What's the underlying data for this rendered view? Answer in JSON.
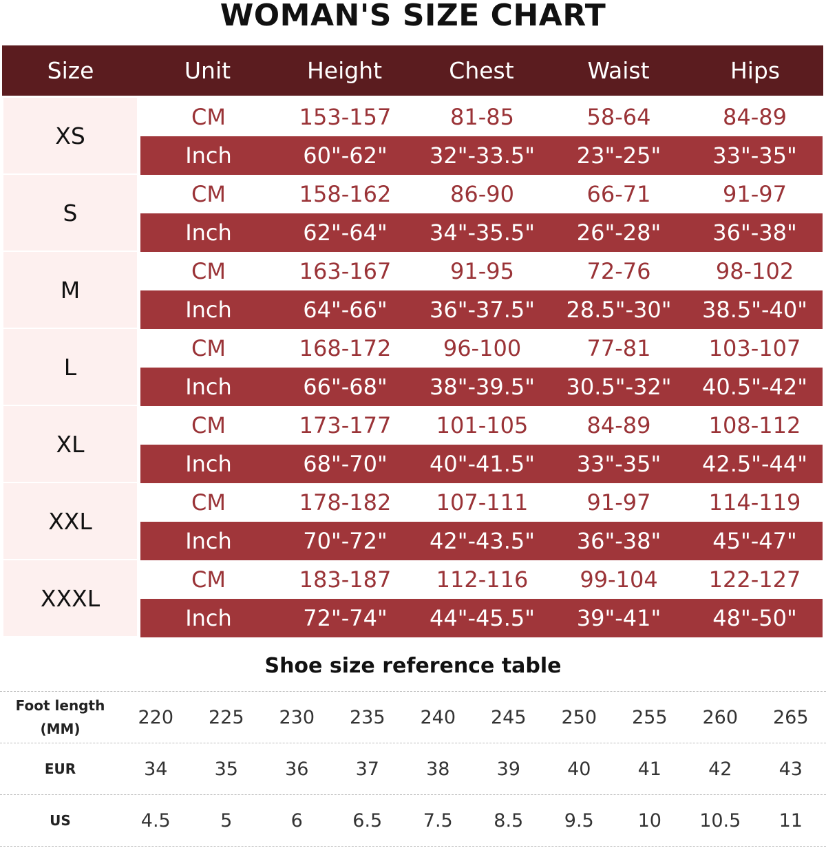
{
  "title": "WOMAN'S SIZE CHART",
  "colors": {
    "header_bg": "#5b1c1f",
    "inch_row_bg": "#a0363a",
    "cm_text": "#9a3337",
    "size_label_bg": "#fdf0ef"
  },
  "size_chart": {
    "headers": [
      "Size",
      "Unit",
      "Height",
      "Chest",
      "Waist",
      "Hips"
    ],
    "groups": [
      {
        "size": "XS",
        "cm": [
          "CM",
          "153-157",
          "81-85",
          "58-64",
          "84-89"
        ],
        "inch": [
          "Inch",
          "60\"-62\"",
          "32\"-33.5\"",
          "23\"-25\"",
          "33\"-35\""
        ]
      },
      {
        "size": "S",
        "cm": [
          "CM",
          "158-162",
          "86-90",
          "66-71",
          "91-97"
        ],
        "inch": [
          "Inch",
          "62\"-64\"",
          "34\"-35.5\"",
          "26\"-28\"",
          "36\"-38\""
        ]
      },
      {
        "size": "M",
        "cm": [
          "CM",
          "163-167",
          "91-95",
          "72-76",
          "98-102"
        ],
        "inch": [
          "Inch",
          "64\"-66\"",
          "36\"-37.5\"",
          "28.5\"-30\"",
          "38.5\"-40\""
        ]
      },
      {
        "size": "L",
        "cm": [
          "CM",
          "168-172",
          "96-100",
          "77-81",
          "103-107"
        ],
        "inch": [
          "Inch",
          "66\"-68\"",
          "38\"-39.5\"",
          "30.5\"-32\"",
          "40.5\"-42\""
        ]
      },
      {
        "size": "XL",
        "cm": [
          "CM",
          "173-177",
          "101-105",
          "84-89",
          "108-112"
        ],
        "inch": [
          "Inch",
          "68\"-70\"",
          "40\"-41.5\"",
          "33\"-35\"",
          "42.5\"-44\""
        ]
      },
      {
        "size": "XXL",
        "cm": [
          "CM",
          "178-182",
          "107-111",
          "91-97",
          "114-119"
        ],
        "inch": [
          "Inch",
          "70\"-72\"",
          "42\"-43.5\"",
          "36\"-38\"",
          "45\"-47\""
        ]
      },
      {
        "size": "XXXL",
        "cm": [
          "CM",
          "183-187",
          "112-116",
          "99-104",
          "122-127"
        ],
        "inch": [
          "Inch",
          "72\"-74\"",
          "44\"-45.5\"",
          "39\"-41\"",
          "48\"-50\""
        ]
      }
    ]
  },
  "shoe_table": {
    "title": "Shoe size reference table",
    "rows": [
      {
        "label_line1": "Foot length",
        "label_line2": "(MM)",
        "values": [
          "220",
          "225",
          "230",
          "235",
          "240",
          "245",
          "250",
          "255",
          "260",
          "265"
        ]
      },
      {
        "label_line1": "EUR",
        "label_line2": "",
        "values": [
          "34",
          "35",
          "36",
          "37",
          "38",
          "39",
          "40",
          "41",
          "42",
          "43"
        ]
      },
      {
        "label_line1": "US",
        "label_line2": "",
        "values": [
          "4.5",
          "5",
          "6",
          "6.5",
          "7.5",
          "8.5",
          "9.5",
          "10",
          "10.5",
          "11"
        ]
      }
    ]
  }
}
